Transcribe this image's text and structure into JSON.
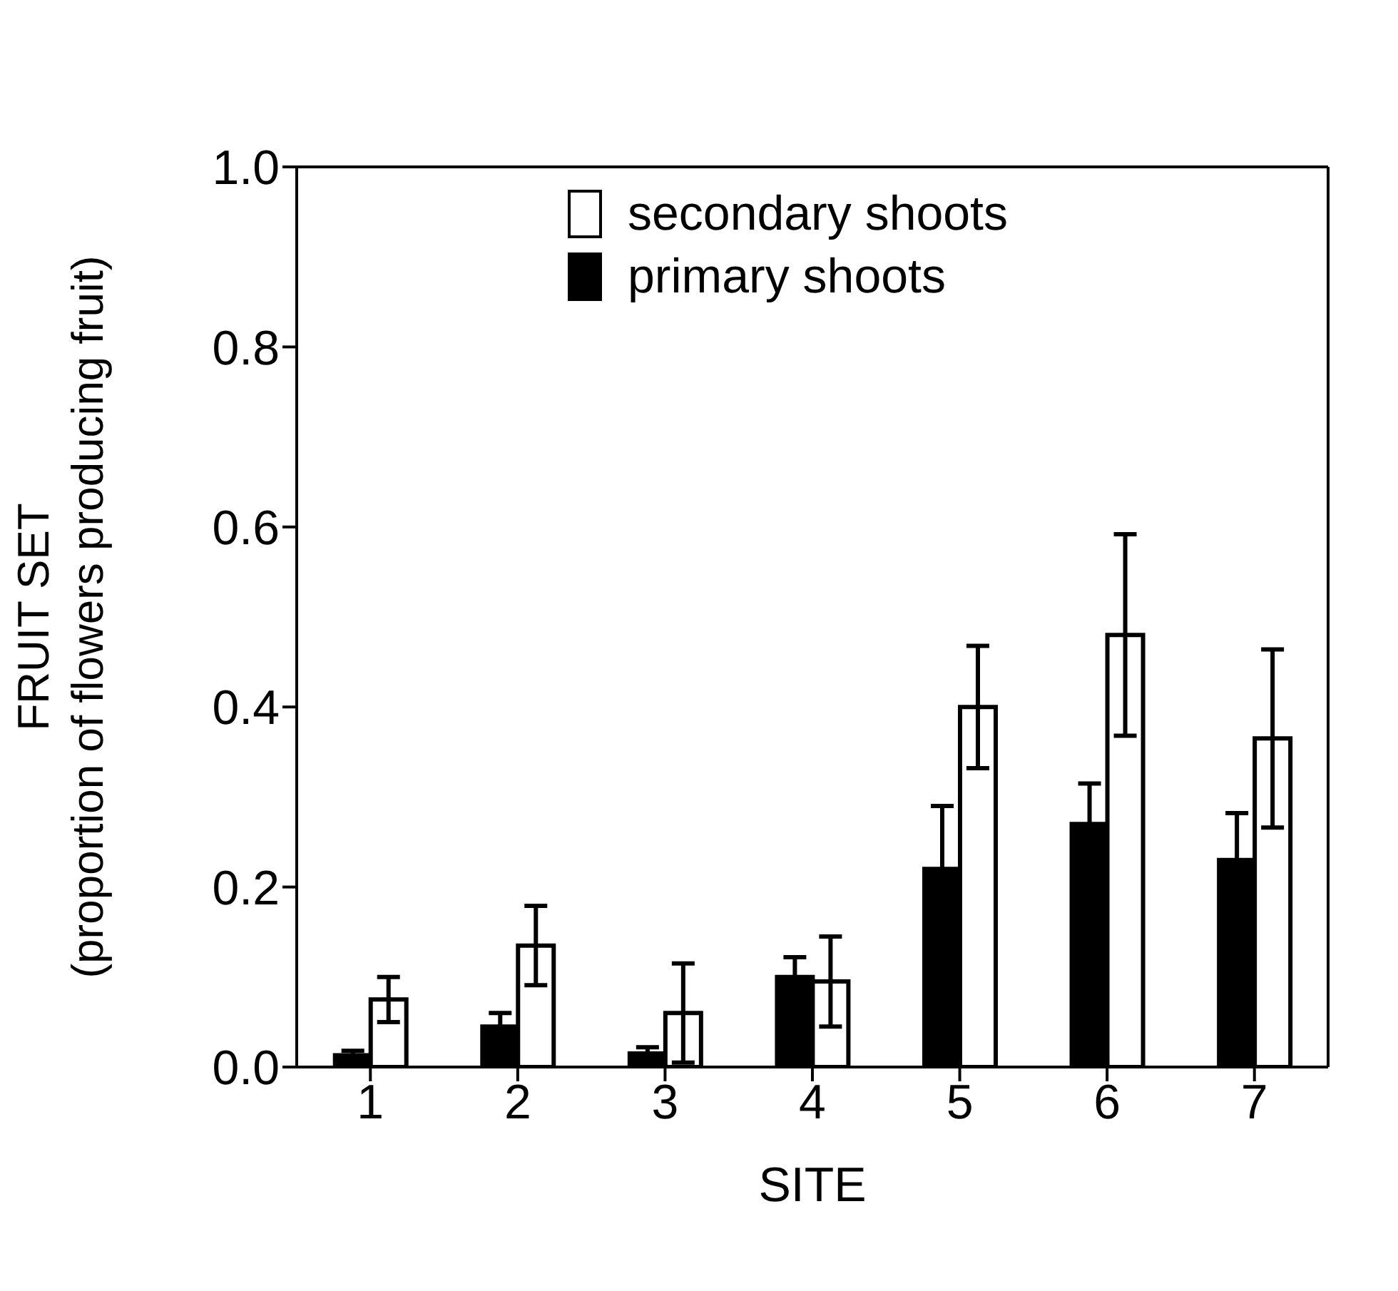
{
  "chart_data": {
    "type": "bar",
    "xlabel": "SITE",
    "ylabel": "FRUIT SET\n(proportion of flowers producing fruit)",
    "categories": [
      "1",
      "2",
      "3",
      "4",
      "5",
      "6",
      "7"
    ],
    "series": [
      {
        "name": "primary shoots",
        "color": "#000000",
        "values": [
          0.013,
          0.045,
          0.015,
          0.1,
          0.22,
          0.27,
          0.23
        ],
        "errors": [
          0.005,
          0.015,
          0.007,
          0.022,
          0.07,
          0.045,
          0.052
        ]
      },
      {
        "name": "secondary shoots",
        "color": "#ffffff",
        "values": [
          0.075,
          0.135,
          0.06,
          0.095,
          0.4,
          0.48,
          0.365
        ],
        "errors": [
          0.025,
          0.044,
          0.055,
          0.05,
          0.068,
          0.112,
          0.099
        ]
      }
    ],
    "ylim": [
      0,
      1
    ],
    "yticks": [
      {
        "value": 0,
        "label": "0.0"
      },
      {
        "value": 0.2,
        "label": "0.2"
      },
      {
        "value": 0.4,
        "label": "0.4"
      },
      {
        "value": 0.6,
        "label": "0.6"
      },
      {
        "value": 0.8,
        "label": "0.8"
      },
      {
        "value": 1,
        "label": "1.0"
      }
    ],
    "grid": false,
    "legend": "top"
  }
}
